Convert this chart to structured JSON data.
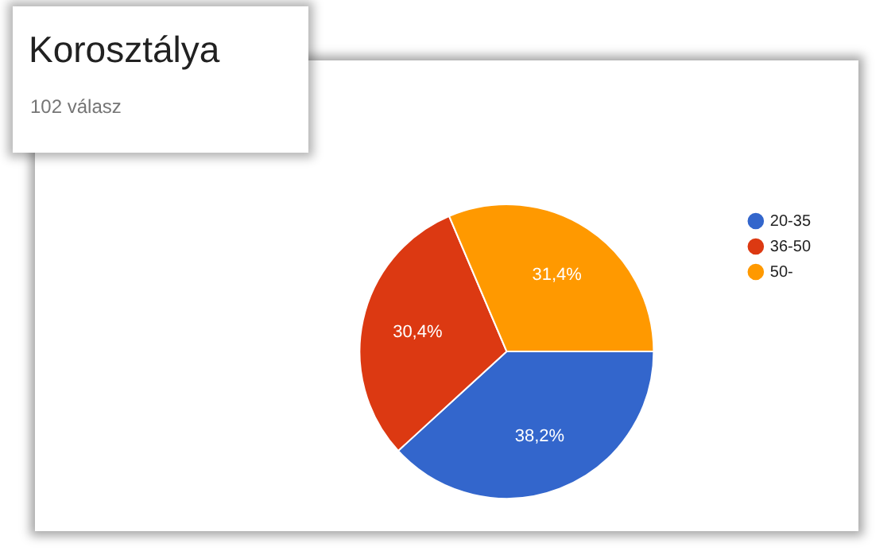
{
  "chart_data": {
    "type": "pie",
    "title": "Korosztálya",
    "subtitle": "102 válasz",
    "categories": [
      "20-35",
      "36-50",
      "50-"
    ],
    "values": [
      38.2,
      30.4,
      31.4
    ],
    "colors": [
      "#3366cc",
      "#dc3912",
      "#ff9900"
    ],
    "value_labels": [
      "38,2%",
      "30,4%",
      "31,4%"
    ],
    "legend": "top right"
  }
}
